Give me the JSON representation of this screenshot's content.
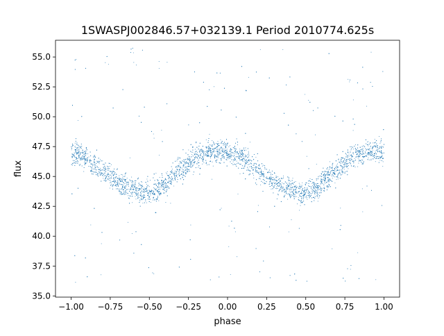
{
  "chart_data": {
    "type": "scatter",
    "title": "1SWASPJ002846.57+032139.1 Period 2010774.625s",
    "xlabel": "phase",
    "ylabel": "flux",
    "xlim": [
      -1.1,
      1.1
    ],
    "ylim": [
      34.9,
      56.4
    ],
    "x_ticks": [
      -1.0,
      -0.75,
      -0.5,
      -0.25,
      0.0,
      0.25,
      0.5,
      0.75,
      1.0
    ],
    "x_tick_labels": [
      "−1.00",
      "−0.75",
      "−0.50",
      "−0.25",
      "0.00",
      "0.25",
      "0.50",
      "0.75",
      "1.00"
    ],
    "y_ticks": [
      35.0,
      37.5,
      40.0,
      42.5,
      45.0,
      47.5,
      50.0,
      52.5,
      55.0
    ],
    "y_tick_labels": [
      "35.0",
      "37.5",
      "40.0",
      "42.5",
      "45.0",
      "47.5",
      "50.0",
      "52.5",
      "55.0"
    ],
    "grid": false,
    "legend": "none",
    "marker_color": "#1f77b4",
    "series": [
      {
        "x": [
          -1.0,
          -0.95,
          -0.9,
          -0.85,
          -0.8,
          -0.75,
          -0.7,
          -0.65,
          -0.6,
          -0.55,
          -0.5,
          -0.45,
          -0.4,
          -0.35,
          -0.3,
          -0.25,
          -0.2,
          -0.15,
          -0.1,
          -0.05,
          0.0,
          0.05,
          0.1,
          0.15,
          0.2,
          0.25,
          0.3,
          0.35,
          0.4,
          0.45,
          0.5,
          0.55,
          0.6,
          0.65,
          0.7,
          0.75,
          0.8,
          0.85,
          0.9,
          0.95,
          1.0
        ],
        "y": [
          47.0,
          46.9,
          46.5,
          46.0,
          45.5,
          45.0,
          44.6,
          44.2,
          43.9,
          43.7,
          43.7,
          43.9,
          44.4,
          45.0,
          45.6,
          46.2,
          46.6,
          46.9,
          47.1,
          47.1,
          47.0,
          46.9,
          46.5,
          46.0,
          45.5,
          45.0,
          44.6,
          44.2,
          43.9,
          43.7,
          43.7,
          43.9,
          44.4,
          45.0,
          45.6,
          46.2,
          46.6,
          46.9,
          47.1,
          47.1,
          47.0
        ],
        "spread": 1.4
      }
    ]
  }
}
